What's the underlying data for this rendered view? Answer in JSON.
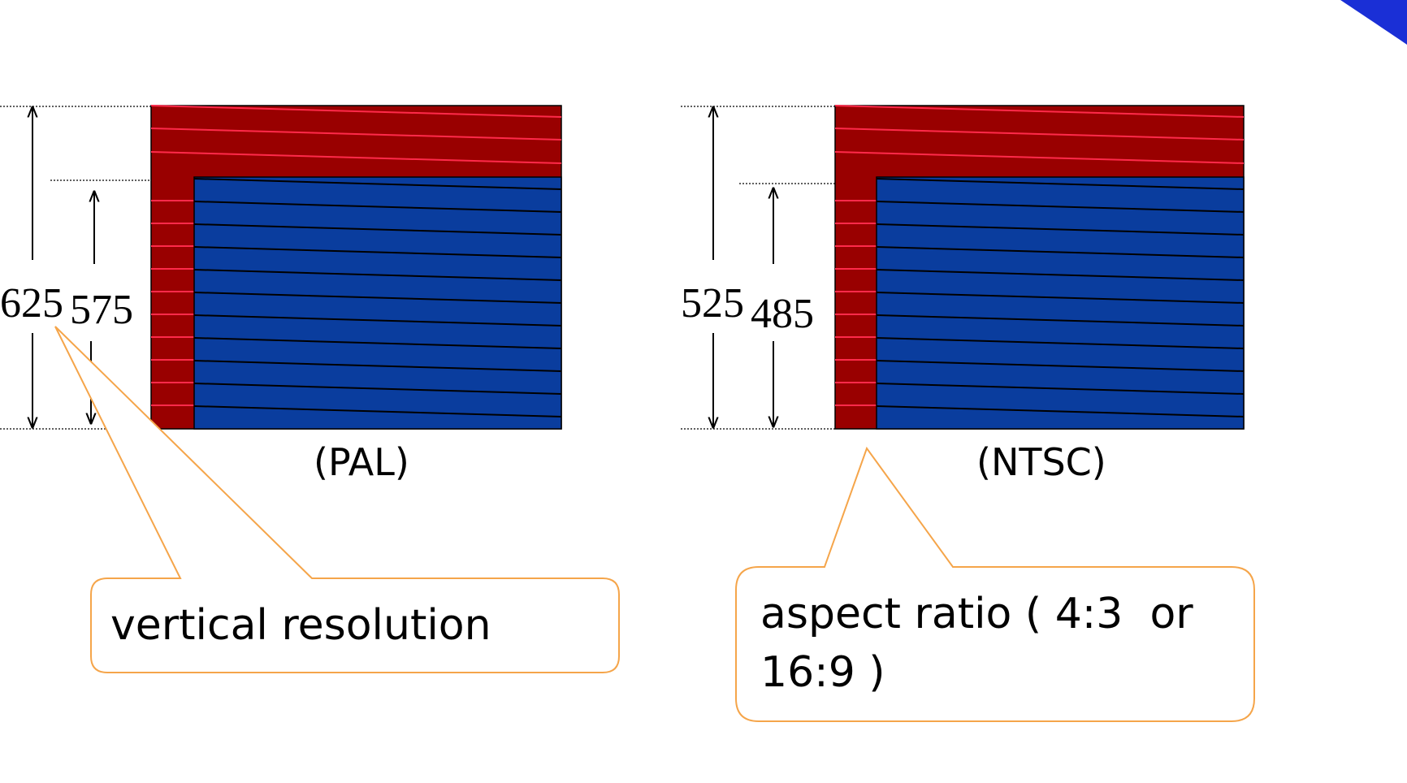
{
  "pal": {
    "total_lines": "625",
    "active_lines": "575",
    "caption": "(PAL)"
  },
  "ntsc": {
    "total_lines": "525",
    "active_lines": "485",
    "caption": "(NTSC)"
  },
  "callouts": {
    "vertical_resolution": "vertical resolution",
    "aspect_ratio_line1": "aspect ratio ( 4:3  or",
    "aspect_ratio_line2": "16:9 )"
  },
  "colors": {
    "blanking_area": "#990000",
    "active_area": "#0a3d9e",
    "blanking_scan_line": "#ff2a4a",
    "active_scan_line": "#000000",
    "callout_border": "#f5a54a"
  }
}
